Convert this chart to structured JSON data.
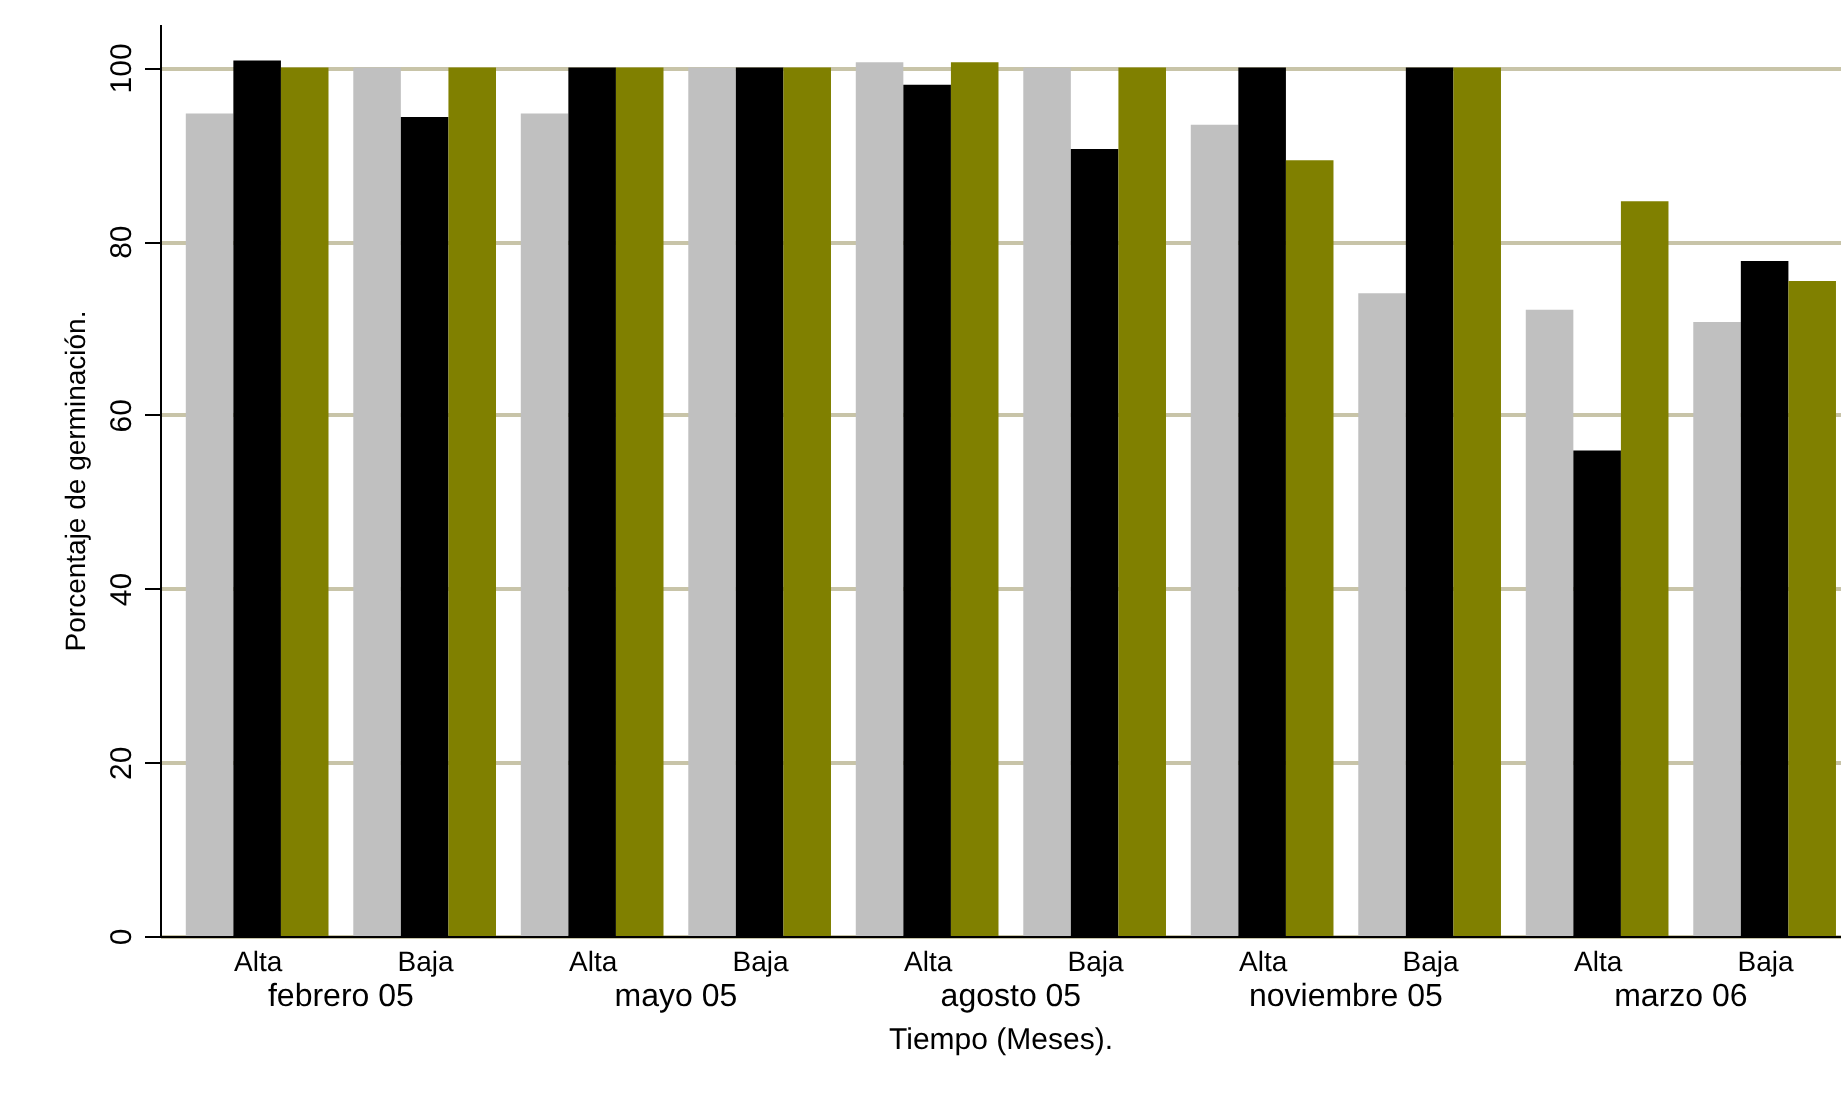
{
  "chart_data": {
    "type": "bar",
    "xlabel": "Tiempo (Meses).",
    "ylabel": "Porcentaje de germinación.",
    "categories": [
      "Alta",
      "Baja",
      "Alta",
      "Baja",
      "Alta",
      "Baja",
      "Alta",
      "Baja",
      "Alta",
      "Baja"
    ],
    "series": [
      {
        "color": "#c0c0c0",
        "values": [
          94.7,
          100,
          94.7,
          100,
          100.6,
          100,
          93.4,
          74,
          72.1,
          70.7
        ]
      },
      {
        "color": "#000000",
        "values": [
          100.8,
          94.3,
          100,
          100,
          98,
          90.6,
          100,
          100,
          55.9,
          77.7
        ]
      },
      {
        "color": "#808000",
        "values": [
          100,
          100,
          100,
          100,
          100.6,
          100,
          89.3,
          100,
          84.6,
          75.4
        ]
      }
    ],
    "annotations": [
      "febrero 05",
      "mayo 05",
      "agosto 05",
      "noviembre 05",
      "marzo 06"
    ],
    "ylim": [
      0,
      105
    ],
    "yticks": [
      0,
      20,
      40,
      60,
      80,
      100
    ],
    "grid": "y"
  }
}
